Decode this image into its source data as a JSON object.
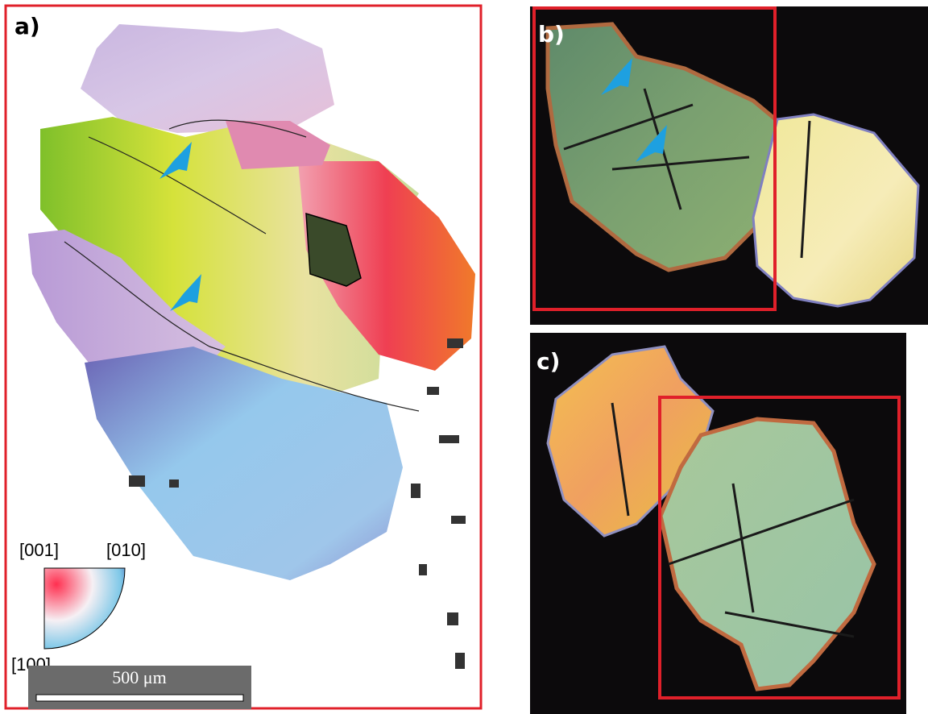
{
  "panels": [
    {
      "label": "a)"
    },
    {
      "label": "b)"
    },
    {
      "label": "c)"
    }
  ],
  "legend": {
    "top_left": "[001]",
    "top_right": "[010]",
    "bottom": "[100]"
  },
  "scale_bar": {
    "label": "500 μm"
  }
}
